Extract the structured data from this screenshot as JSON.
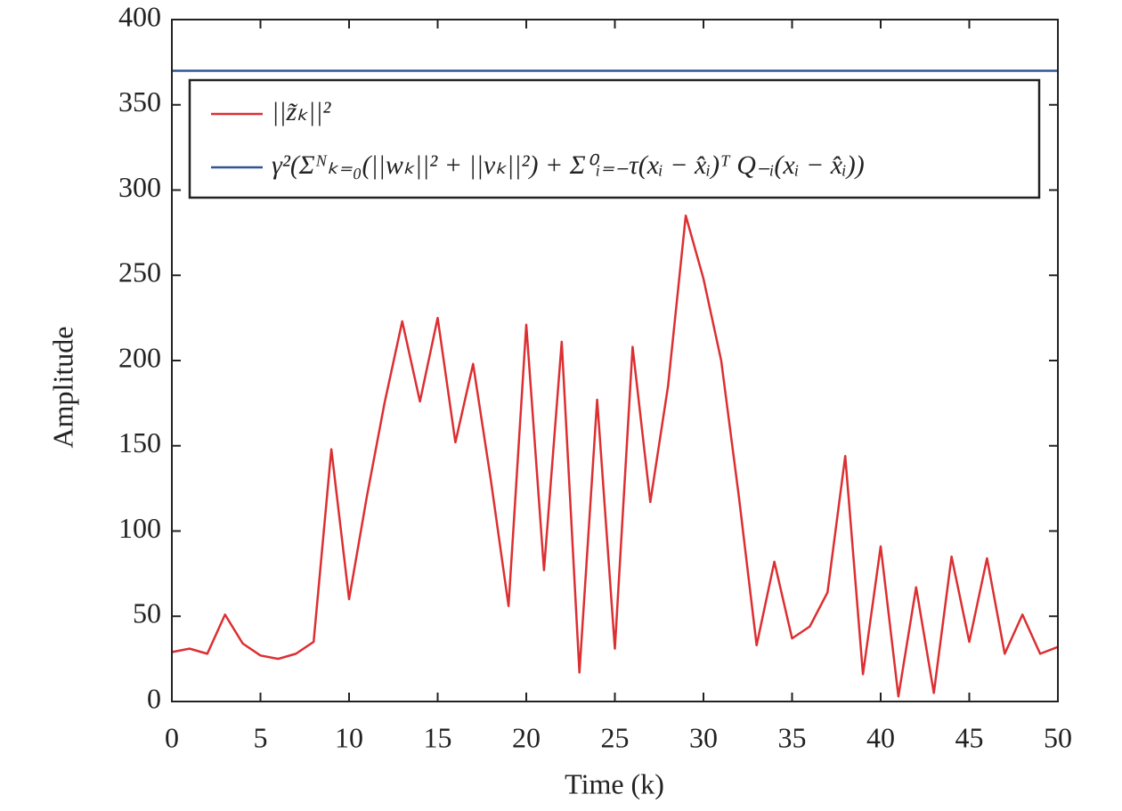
{
  "chart_data": {
    "type": "line",
    "x_label": "Time (k)",
    "y_label": "Amplitude",
    "x": [
      0,
      1,
      2,
      3,
      4,
      5,
      6,
      7,
      8,
      9,
      10,
      11,
      12,
      13,
      14,
      15,
      16,
      17,
      18,
      19,
      20,
      21,
      22,
      23,
      24,
      25,
      26,
      27,
      28,
      29,
      30,
      31,
      32,
      33,
      34,
      35,
      36,
      37,
      38,
      39,
      40,
      41,
      42,
      43,
      44,
      45,
      46,
      47,
      48,
      49,
      50
    ],
    "series": [
      {
        "name": "||z̃ₖ||²",
        "color": "#dc2f32",
        "values": [
          29,
          31,
          28,
          51,
          34,
          27,
          25,
          28,
          35,
          148,
          60,
          120,
          175,
          223,
          176,
          225,
          152,
          198,
          130,
          56,
          221,
          77,
          211,
          17,
          177,
          31,
          208,
          117,
          185,
          285,
          248,
          200,
          120,
          33,
          82,
          37,
          44,
          64,
          144,
          16,
          91,
          3,
          67,
          5,
          85,
          35,
          84,
          28,
          51,
          28,
          32
        ]
      },
      {
        "name": "γ²(Σᴺₖ₌₀(||wₖ||² + ||vₖ||²) + Σ⁰ᵢ₌₋τ(xᵢ − x̂ᵢ)ᵀ Q₋ᵢ(xᵢ − x̂ᵢ))",
        "color": "#2f5597",
        "values": [
          370,
          370,
          370,
          370,
          370,
          370,
          370,
          370,
          370,
          370,
          370,
          370,
          370,
          370,
          370,
          370,
          370,
          370,
          370,
          370,
          370,
          370,
          370,
          370,
          370,
          370,
          370,
          370,
          370,
          370,
          370,
          370,
          370,
          370,
          370,
          370,
          370,
          370,
          370,
          370,
          370,
          370,
          370,
          370,
          370,
          370,
          370,
          370,
          370,
          370,
          370
        ]
      }
    ],
    "xlim": [
      0,
      50
    ],
    "xticks": [
      0,
      5,
      10,
      15,
      20,
      25,
      30,
      35,
      40,
      45,
      50
    ],
    "ylim": [
      0,
      400
    ],
    "yticks": [
      0,
      50,
      100,
      150,
      200,
      250,
      300,
      350,
      400
    ],
    "grid": false,
    "legend": "upper left"
  }
}
